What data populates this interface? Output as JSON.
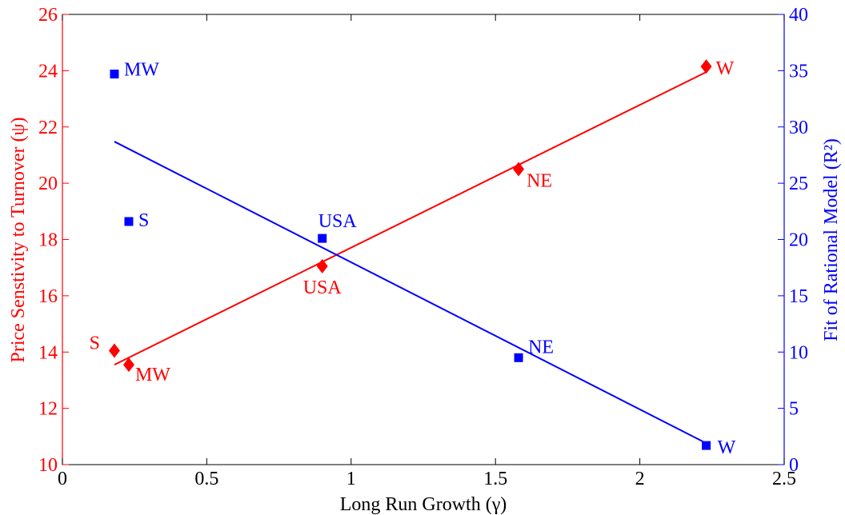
{
  "chart_data": {
    "type": "scatter",
    "xlabel": "Long Run Growth (γ)",
    "ylabel_left": "Price Senstivity to Turnover (ψ)",
    "ylabel_right": "Fit of Rational Model (R²)",
    "xlim": [
      0,
      2.5
    ],
    "ylim_left": [
      10,
      26
    ],
    "ylim_right": [
      0,
      40
    ],
    "xticks": [
      "0",
      "0.5",
      "1",
      "1.5",
      "2",
      "2.5"
    ],
    "yticks_left": [
      "10",
      "12",
      "14",
      "16",
      "18",
      "20",
      "22",
      "24",
      "26"
    ],
    "yticks_right": [
      "0",
      "5",
      "10",
      "15",
      "20",
      "25",
      "30",
      "35",
      "40"
    ],
    "grid": false,
    "series": [
      {
        "axis": "left",
        "color": "#ff0000",
        "marker": "diamond",
        "points": [
          {
            "label": "S",
            "x": 0.18,
            "y": 14.05
          },
          {
            "label": "MW",
            "x": 0.23,
            "y": 13.55
          },
          {
            "label": "USA",
            "x": 0.9,
            "y": 17.05
          },
          {
            "label": "NE",
            "x": 1.58,
            "y": 20.5
          },
          {
            "label": "W",
            "x": 2.23,
            "y": 24.15
          }
        ],
        "fit_line": {
          "x": [
            0.18,
            2.23
          ],
          "y": [
            13.55,
            23.95
          ]
        }
      },
      {
        "axis": "right",
        "color": "#0000ff",
        "marker": "square",
        "points": [
          {
            "label": "MW",
            "x": 0.18,
            "y": 34.7
          },
          {
            "label": "S",
            "x": 0.23,
            "y": 21.6
          },
          {
            "label": "USA",
            "x": 0.9,
            "y": 20.1
          },
          {
            "label": "NE",
            "x": 1.58,
            "y": 9.5
          },
          {
            "label": "W",
            "x": 2.23,
            "y": 1.7
          }
        ],
        "fit_line": {
          "x": [
            0.18,
            2.23
          ],
          "y": [
            28.7,
            1.9
          ]
        }
      }
    ]
  }
}
